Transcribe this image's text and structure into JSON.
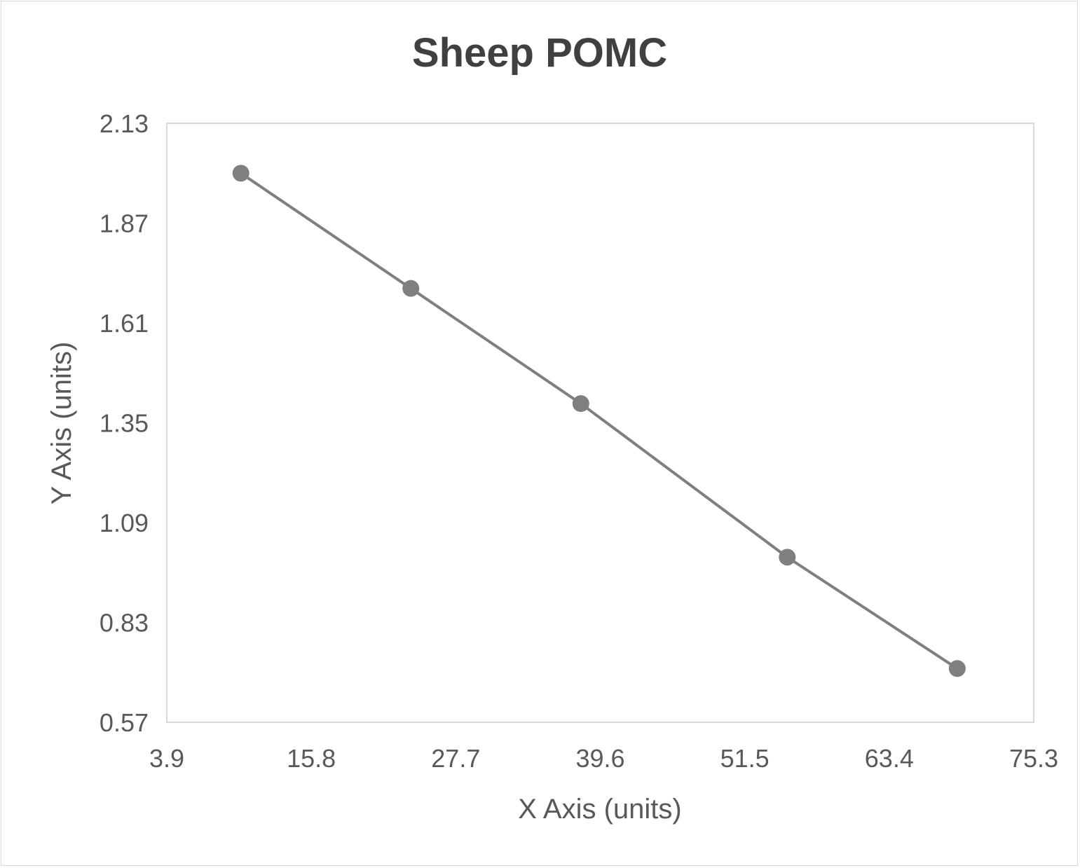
{
  "chart_data": {
    "type": "line",
    "title": "Sheep POMC",
    "xlabel": "X Axis (units)",
    "ylabel": "Y Axis (units)",
    "xlim": [
      3.9,
      75.3
    ],
    "ylim": [
      0.57,
      2.13
    ],
    "xticks": [
      "3.9",
      "15.8",
      "27.7",
      "39.6",
      "51.5",
      "63.4",
      "75.3"
    ],
    "yticks": [
      "2.13",
      "1.87",
      "1.61",
      "1.35",
      "1.09",
      "0.83",
      "0.57"
    ],
    "grid": false,
    "legend": "none",
    "series": [
      {
        "x": [
          10,
          24,
          38,
          55,
          69
        ],
        "y": [
          2.0,
          1.7,
          1.4,
          1.0,
          0.71
        ],
        "color": "#7f7f7f",
        "markers": true
      }
    ]
  }
}
